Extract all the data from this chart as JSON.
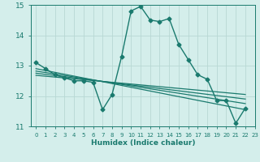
{
  "title": "",
  "xlabel": "Humidex (Indice chaleur)",
  "xlim": [
    -0.5,
    23
  ],
  "ylim": [
    11,
    15
  ],
  "yticks": [
    11,
    12,
    13,
    14,
    15
  ],
  "xticks": [
    0,
    1,
    2,
    3,
    4,
    5,
    6,
    7,
    8,
    9,
    10,
    11,
    12,
    13,
    14,
    15,
    16,
    17,
    18,
    19,
    20,
    21,
    22,
    23
  ],
  "bg_color": "#d4eeeb",
  "line_color": "#1a7a6e",
  "grid_color": "#b8d8d4",
  "main_series": [
    13.1,
    12.9,
    12.7,
    12.6,
    12.5,
    12.5,
    12.45,
    11.55,
    12.05,
    13.3,
    14.8,
    14.95,
    14.5,
    14.45,
    14.55,
    13.7,
    13.2,
    12.7,
    12.55,
    11.85,
    11.85,
    11.1,
    11.6,
    null
  ],
  "trend_lines": [
    {
      "x_start": 0,
      "y_start": 12.9,
      "x_end": 22,
      "y_end": 11.55
    },
    {
      "x_start": 0,
      "y_start": 12.82,
      "x_end": 22,
      "y_end": 11.75
    },
    {
      "x_start": 0,
      "y_start": 12.75,
      "x_end": 22,
      "y_end": 11.9
    },
    {
      "x_start": 0,
      "y_start": 12.68,
      "x_end": 22,
      "y_end": 12.05
    }
  ]
}
